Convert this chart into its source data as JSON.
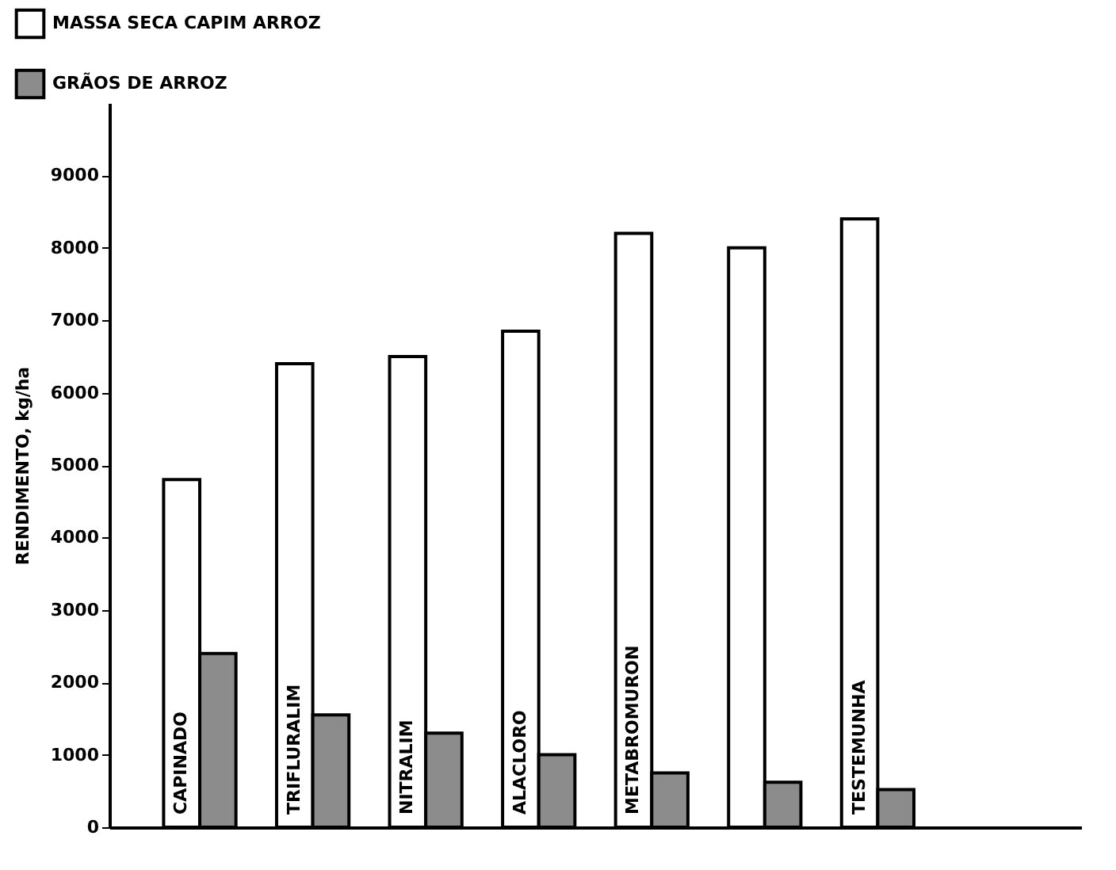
{
  "chart_data": {
    "type": "bar",
    "ylabel": "RENDIMENTO, kg/ha",
    "categories": [
      "CAPINADO",
      "TRIFLURALIM",
      "NITRALIM",
      "ALACLORO",
      "METABROMURON",
      null,
      "TESTEMUNHA"
    ],
    "series": [
      {
        "name": "MASSA SECA CAPIM ARROZ",
        "color": "#ffffff",
        "values": [
          4800,
          6400,
          6500,
          6850,
          8200,
          8000,
          8400
        ]
      },
      {
        "name": "GRÃOS DE ARROZ",
        "color": "#8c8c8c",
        "values": [
          2400,
          1550,
          1300,
          1000,
          750,
          620,
          520
        ]
      }
    ],
    "ylim": [
      0,
      10000
    ],
    "yticks": [
      0,
      1000,
      2000,
      3000,
      4000,
      5000,
      6000,
      7000,
      8000,
      9000
    ],
    "grid": false,
    "legend": "top left"
  }
}
